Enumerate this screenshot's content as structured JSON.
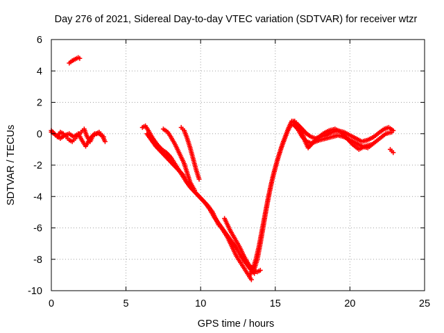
{
  "chart_data": {
    "type": "scatter",
    "title": "Day 276 of 2021, Sidereal Day-to-day VTEC variation (SDTVAR) for receiver wtzr",
    "xlabel": "GPS time / hours",
    "ylabel": "SDTVAR / TECUs",
    "xlim": [
      0,
      25
    ],
    "ylim": [
      -10,
      6
    ],
    "xticks": [
      0,
      5,
      10,
      15,
      20,
      25
    ],
    "yticks": [
      -10,
      -8,
      -6,
      -4,
      -2,
      0,
      2,
      4,
      6
    ],
    "grid": true,
    "marker": "plus",
    "series_color": "#ff0000",
    "series": [
      {
        "name": "SDTVAR",
        "segments": [
          [
            [
              0.0,
              0.1
            ],
            [
              0.2,
              0.0
            ],
            [
              0.4,
              -0.2
            ],
            [
              0.6,
              0.1
            ],
            [
              0.8,
              0.0
            ],
            [
              1.0,
              -0.2
            ],
            [
              1.2,
              -0.4
            ],
            [
              1.4,
              -0.5
            ],
            [
              1.6,
              -0.3
            ],
            [
              1.8,
              -0.1
            ],
            [
              2.0,
              0.1
            ],
            [
              2.2,
              0.3
            ],
            [
              2.4,
              -0.2
            ],
            [
              2.6,
              -0.5
            ],
            [
              2.8,
              -0.1
            ],
            [
              3.0,
              0.0
            ],
            [
              3.2,
              0.1
            ],
            [
              3.4,
              -0.1
            ],
            [
              3.6,
              -0.5
            ]
          ],
          [
            [
              0.0,
              0.2
            ],
            [
              0.3,
              -0.1
            ],
            [
              0.6,
              -0.3
            ],
            [
              0.9,
              -0.1
            ],
            [
              1.2,
              0.0
            ],
            [
              1.5,
              -0.2
            ],
            [
              1.8,
              0.0
            ],
            [
              2.1,
              -0.5
            ],
            [
              2.3,
              -0.8
            ],
            [
              2.6,
              -0.3
            ],
            [
              2.9,
              0.0
            ],
            [
              3.2,
              0.0
            ],
            [
              3.5,
              -0.2
            ]
          ],
          [
            [
              1.2,
              4.5
            ],
            [
              1.4,
              4.65
            ],
            [
              1.6,
              4.75
            ],
            [
              1.8,
              4.85
            ],
            [
              1.9,
              4.8
            ]
          ],
          [
            [
              6.1,
              0.4
            ],
            [
              6.3,
              0.5
            ],
            [
              6.5,
              0.2
            ],
            [
              6.8,
              -0.3
            ],
            [
              7.1,
              -0.7
            ],
            [
              7.4,
              -1.0
            ],
            [
              7.7,
              -1.2
            ],
            [
              8.0,
              -1.5
            ],
            [
              8.2,
              -1.8
            ],
            [
              8.4,
              -2.1
            ],
            [
              8.6,
              -2.4
            ],
            [
              8.8,
              -2.7
            ],
            [
              9.0,
              -3.0
            ],
            [
              9.3,
              -3.4
            ],
            [
              9.6,
              -3.7
            ],
            [
              9.9,
              -4.0
            ],
            [
              10.2,
              -4.3
            ],
            [
              10.5,
              -4.6
            ],
            [
              10.8,
              -5.0
            ],
            [
              11.0,
              -5.4
            ],
            [
              11.2,
              -5.8
            ],
            [
              11.4,
              -6.0
            ],
            [
              11.6,
              -6.3
            ],
            [
              11.8,
              -6.6
            ],
            [
              12.0,
              -7.0
            ],
            [
              12.2,
              -7.4
            ],
            [
              12.4,
              -7.8
            ],
            [
              12.6,
              -8.1
            ],
            [
              12.8,
              -8.4
            ],
            [
              13.0,
              -8.7
            ],
            [
              13.2,
              -9.0
            ],
            [
              13.4,
              -9.3
            ]
          ],
          [
            [
              6.4,
              0.0
            ],
            [
              6.7,
              -0.4
            ],
            [
              7.0,
              -0.8
            ],
            [
              7.3,
              -1.1
            ],
            [
              7.6,
              -1.4
            ],
            [
              7.9,
              -1.7
            ],
            [
              8.2,
              -2.0
            ],
            [
              8.5,
              -2.3
            ],
            [
              8.8,
              -2.6
            ],
            [
              9.1,
              -3.1
            ],
            [
              9.4,
              -3.5
            ],
            [
              9.7,
              -3.8
            ],
            [
              10.0,
              -4.1
            ],
            [
              10.3,
              -4.4
            ],
            [
              10.6,
              -4.8
            ],
            [
              10.9,
              -5.3
            ],
            [
              11.2,
              -5.7
            ],
            [
              11.5,
              -6.1
            ],
            [
              11.8,
              -6.5
            ],
            [
              12.1,
              -6.9
            ],
            [
              12.4,
              -7.3
            ],
            [
              12.7,
              -7.8
            ],
            [
              13.0,
              -8.2
            ],
            [
              13.3,
              -8.6
            ],
            [
              13.6,
              -8.9
            ]
          ],
          [
            [
              7.5,
              0.3
            ],
            [
              7.8,
              0.1
            ],
            [
              8.0,
              -0.2
            ],
            [
              8.3,
              -0.7
            ],
            [
              8.6,
              -1.3
            ],
            [
              8.9,
              -1.9
            ],
            [
              9.1,
              -2.5
            ],
            [
              9.3,
              -3.1
            ],
            [
              9.6,
              -3.6
            ]
          ],
          [
            [
              8.7,
              0.4
            ],
            [
              8.9,
              0.2
            ],
            [
              9.1,
              -0.3
            ],
            [
              9.3,
              -0.9
            ],
            [
              9.5,
              -1.6
            ],
            [
              9.7,
              -2.3
            ],
            [
              9.9,
              -2.9
            ]
          ],
          [
            [
              11.6,
              -5.4
            ],
            [
              11.8,
              -5.8
            ],
            [
              12.0,
              -6.2
            ],
            [
              12.3,
              -6.7
            ],
            [
              12.6,
              -7.2
            ],
            [
              12.9,
              -7.8
            ],
            [
              13.2,
              -8.3
            ],
            [
              13.5,
              -8.7
            ],
            [
              13.8,
              -8.8
            ],
            [
              14.0,
              -8.7
            ]
          ],
          [
            [
              13.3,
              -9.0
            ],
            [
              13.5,
              -8.6
            ],
            [
              13.7,
              -8.0
            ],
            [
              13.9,
              -7.2
            ],
            [
              14.1,
              -6.2
            ],
            [
              14.3,
              -5.2
            ],
            [
              14.5,
              -4.2
            ],
            [
              14.7,
              -3.3
            ],
            [
              14.9,
              -2.5
            ],
            [
              15.1,
              -1.8
            ],
            [
              15.3,
              -1.2
            ],
            [
              15.5,
              -0.6
            ],
            [
              15.7,
              -0.1
            ],
            [
              15.9,
              0.4
            ],
            [
              16.1,
              0.8
            ],
            [
              16.3,
              0.8
            ],
            [
              16.5,
              0.6
            ],
            [
              16.8,
              0.3
            ],
            [
              17.1,
              0.0
            ],
            [
              17.4,
              -0.2
            ],
            [
              17.7,
              -0.3
            ],
            [
              18.0,
              -0.2
            ],
            [
              18.4,
              -0.1
            ],
            [
              18.8,
              0.1
            ],
            [
              19.2,
              0.2
            ],
            [
              19.6,
              0.1
            ],
            [
              20.0,
              -0.1
            ],
            [
              20.4,
              -0.3
            ],
            [
              20.8,
              -0.5
            ],
            [
              21.2,
              -0.4
            ],
            [
              21.6,
              -0.2
            ],
            [
              22.0,
              0.1
            ],
            [
              22.3,
              0.3
            ],
            [
              22.6,
              0.4
            ],
            [
              22.9,
              0.2
            ]
          ],
          [
            [
              13.6,
              -8.6
            ],
            [
              13.8,
              -8.0
            ],
            [
              14.0,
              -7.0
            ],
            [
              14.2,
              -5.9
            ],
            [
              14.4,
              -4.8
            ],
            [
              14.6,
              -3.8
            ],
            [
              14.8,
              -2.9
            ],
            [
              15.0,
              -2.2
            ],
            [
              15.2,
              -1.5
            ],
            [
              15.4,
              -0.9
            ],
            [
              15.6,
              -0.4
            ],
            [
              15.8,
              0.1
            ],
            [
              16.0,
              0.5
            ],
            [
              16.2,
              0.6
            ],
            [
              16.5,
              0.3
            ],
            [
              16.8,
              -0.2
            ],
            [
              17.1,
              -0.5
            ],
            [
              17.4,
              -0.6
            ],
            [
              17.7,
              -0.5
            ],
            [
              18.0,
              -0.4
            ],
            [
              18.4,
              -0.3
            ],
            [
              18.8,
              -0.2
            ],
            [
              19.2,
              -0.1
            ],
            [
              19.6,
              -0.2
            ],
            [
              20.0,
              -0.4
            ],
            [
              20.4,
              -0.6
            ],
            [
              20.8,
              -0.8
            ],
            [
              21.2,
              -0.9
            ],
            [
              21.6,
              -0.6
            ],
            [
              22.0,
              -0.3
            ],
            [
              22.4,
              0.0
            ],
            [
              22.8,
              0.1
            ]
          ],
          [
            [
              16.2,
              0.8
            ],
            [
              16.5,
              0.5
            ],
            [
              16.8,
              0.1
            ],
            [
              17.0,
              -0.5
            ],
            [
              17.2,
              -0.9
            ],
            [
              17.5,
              -0.6
            ],
            [
              17.8,
              -0.3
            ],
            [
              18.2,
              0.0
            ],
            [
              18.6,
              0.2
            ],
            [
              19.0,
              0.3
            ],
            [
              19.4,
              0.1
            ],
            [
              19.8,
              -0.3
            ],
            [
              20.2,
              -0.7
            ],
            [
              20.6,
              -1.0
            ],
            [
              21.0,
              -0.8
            ],
            [
              21.4,
              -0.7
            ]
          ],
          [
            [
              22.7,
              -1.0
            ],
            [
              22.9,
              -1.2
            ]
          ]
        ]
      }
    ]
  }
}
